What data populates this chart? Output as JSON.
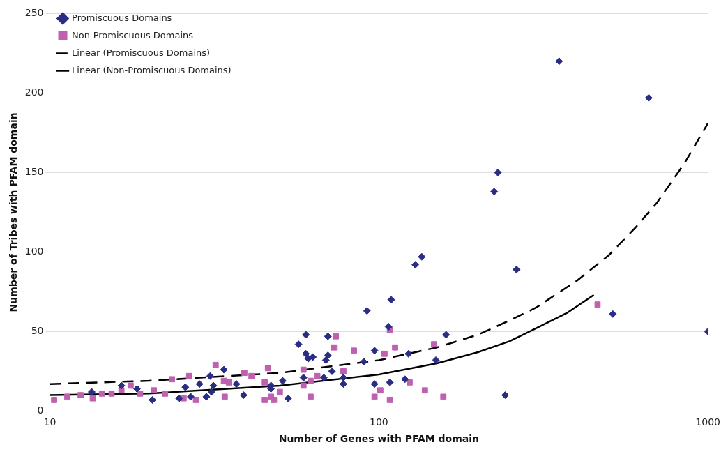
{
  "chart_data": {
    "type": "scatter",
    "xlabel": "Number of Genes with PFAM domain",
    "ylabel": "Number of Tribes with PFAM domain",
    "log": "x",
    "xlim": [
      10,
      1000
    ],
    "xticks": [
      10,
      100,
      1000
    ],
    "ylim": [
      0,
      250
    ],
    "yticks": [
      0,
      50,
      100,
      150,
      200,
      250
    ],
    "grid": "y",
    "legend": "top left",
    "series": [
      {
        "name": "Promiscuous Domains",
        "marker": "diamond",
        "color": "#2b2d84",
        "x": [
          353,
          661,
          230,
          224,
          262,
          135,
          129,
          514,
          1000,
          242,
          160,
          109,
          92,
          107,
          60,
          70,
          57,
          60,
          61,
          63,
          70,
          69,
          97,
          90,
          123,
          149,
          72,
          59,
          68,
          78,
          78,
          97,
          108,
          120,
          51,
          47,
          47,
          53,
          13.4,
          18.4,
          20.5,
          16.5,
          24.7,
          25.8,
          26.8,
          28.5,
          30.7,
          31.4,
          33.8,
          29.9,
          36.9,
          38.8,
          31
        ],
        "values": [
          220,
          197,
          150,
          138,
          89,
          97,
          92,
          61,
          50,
          10,
          48,
          70,
          63,
          53,
          48,
          47,
          42,
          36,
          33,
          34,
          35,
          32,
          38,
          31,
          36,
          32,
          25,
          21,
          21,
          21,
          17,
          17,
          18,
          20,
          19,
          16,
          14,
          8,
          12,
          14,
          7,
          16,
          8,
          15,
          9,
          17,
          22,
          16,
          26,
          9,
          17,
          10,
          12
        ]
      },
      {
        "name": "Non-Promiscuous Domains",
        "marker": "square",
        "color": "#c060b0",
        "x": [
          462,
          74,
          73,
          84,
          112,
          108,
          104,
          147,
          46,
          59,
          78,
          65,
          62,
          59,
          45,
          50,
          47,
          48,
          62,
          97,
          101,
          108,
          124,
          138,
          157,
          45,
          31.9,
          26.5,
          23.5,
          39,
          33.8,
          35,
          41,
          34,
          27.8,
          25.5,
          22.4,
          20.7,
          18.8,
          17.6,
          16.5,
          15.4,
          14.4,
          13.5,
          12.4,
          11.3,
          10.3
        ],
        "values": [
          67,
          47,
          40,
          38,
          40,
          51,
          36,
          42,
          27,
          26,
          25,
          22,
          19,
          16,
          18,
          12,
          9,
          7,
          9,
          9,
          13,
          7,
          18,
          13,
          9,
          7,
          29,
          22,
          20,
          24,
          19,
          18,
          22,
          9,
          7,
          8,
          11,
          13,
          11,
          16,
          13,
          11,
          11,
          8,
          10,
          9,
          7
        ]
      },
      {
        "name": "Linear (Promiscuous Domains)",
        "type": "line",
        "marker": "none",
        "line_style": "dashed",
        "color": "#000000",
        "x": [
          10,
          20,
          50,
          100,
          150,
          200,
          250,
          300,
          400,
          500,
          600,
          700,
          850,
          1000
        ],
        "values": [
          17,
          19,
          24,
          32,
          40,
          48,
          57,
          65,
          82,
          98,
          115,
          131,
          156,
          181
        ]
      },
      {
        "name": "Linear (Non-Promiscuous Domains)",
        "type": "line",
        "marker": "none",
        "line_style": "solid",
        "color": "#000000",
        "x": [
          10,
          20,
          50,
          100,
          150,
          200,
          250,
          300,
          375,
          450
        ],
        "values": [
          10,
          11,
          16,
          23,
          30,
          37,
          44,
          52,
          62,
          73
        ]
      }
    ]
  }
}
